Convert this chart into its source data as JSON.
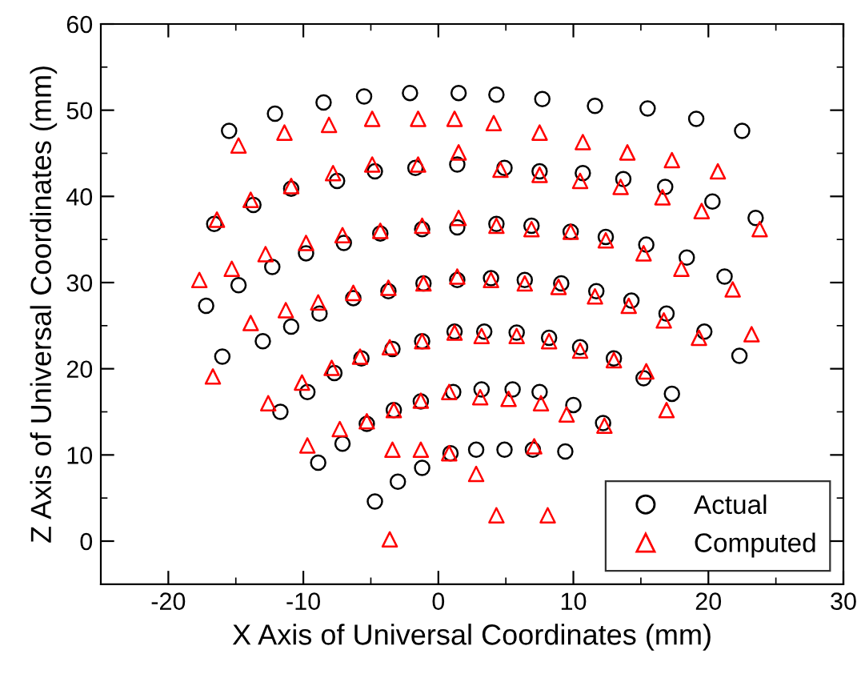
{
  "chart_data": {
    "type": "scatter",
    "xlabel": "X Axis of Universal Coordinates (mm)",
    "ylabel": "Z Axis of Universal Coordinates (mm)",
    "xlim": [
      -25,
      30
    ],
    "ylim": [
      -5,
      60
    ],
    "xticks": [
      {
        "value": -25,
        "label": null
      },
      -20,
      {
        "value": -15,
        "label": null
      },
      -10,
      {
        "value": -5,
        "label": null
      },
      0,
      {
        "value": 5,
        "label": null
      },
      10,
      {
        "value": 15,
        "label": null
      },
      20,
      {
        "value": 25,
        "label": null
      },
      30
    ],
    "yticks": [
      {
        "value": -5,
        "label": null
      },
      0,
      {
        "value": 5,
        "label": null
      },
      10,
      {
        "value": 15,
        "label": null
      },
      20,
      {
        "value": 25,
        "label": null
      },
      30,
      {
        "value": 35,
        "label": null
      },
      40,
      {
        "value": 45,
        "label": null
      },
      50,
      {
        "value": 55,
        "label": null
      },
      60
    ],
    "legend": "bottom right",
    "grid": false,
    "series": [
      {
        "name": "Actual",
        "color": "#000000",
        "marker": "circle",
        "x": [
          -15.5,
          -12.1,
          -8.5,
          -5.5,
          -2.1,
          1.5,
          4.3,
          7.7,
          11.6,
          15.5,
          19.1,
          22.5,
          -16.6,
          -13.7,
          -10.9,
          -7.5,
          -4.7,
          -1.7,
          1.4,
          4.9,
          7.5,
          10.7,
          13.7,
          16.8,
          20.3,
          23.5,
          -17.2,
          -14.8,
          -12.3,
          -9.8,
          -7.0,
          -4.3,
          -1.2,
          1.4,
          4.3,
          6.9,
          9.8,
          12.4,
          15.4,
          18.4,
          21.2,
          -16.0,
          -13.0,
          -10.9,
          -8.8,
          -6.3,
          -3.7,
          -1.1,
          1.4,
          3.9,
          6.4,
          9.1,
          11.7,
          14.3,
          16.9,
          19.7,
          22.3,
          -11.7,
          -9.7,
          -7.7,
          -5.7,
          -3.4,
          -1.2,
          1.2,
          3.4,
          5.8,
          8.2,
          10.5,
          13.0,
          15.2,
          17.3,
          -8.9,
          -7.1,
          -5.3,
          -3.3,
          -1.3,
          1.1,
          3.2,
          5.5,
          7.5,
          10.0,
          12.2,
          -4.7,
          -3.0,
          -1.2,
          0.9,
          2.8,
          4.9,
          7.0,
          9.4
        ],
        "values": [
          47.6,
          49.6,
          50.9,
          51.6,
          52.0,
          52.0,
          51.8,
          51.3,
          50.5,
          50.2,
          49.0,
          47.6,
          36.8,
          39.0,
          40.9,
          41.8,
          42.9,
          43.3,
          43.7,
          43.3,
          42.9,
          42.7,
          42.0,
          41.1,
          39.4,
          37.5,
          27.3,
          29.7,
          31.8,
          33.4,
          34.6,
          35.7,
          36.2,
          36.4,
          36.8,
          36.6,
          35.9,
          35.3,
          34.4,
          32.9,
          30.7,
          21.4,
          23.2,
          24.9,
          26.4,
          28.2,
          29.0,
          29.9,
          30.3,
          30.5,
          30.3,
          29.9,
          29.0,
          27.9,
          26.4,
          24.3,
          21.5,
          15.0,
          17.3,
          19.5,
          21.2,
          22.3,
          23.2,
          24.3,
          24.3,
          24.2,
          23.6,
          22.5,
          21.2,
          18.9,
          17.1,
          9.1,
          11.3,
          13.6,
          15.2,
          16.2,
          17.3,
          17.6,
          17.6,
          17.3,
          15.8,
          13.7,
          4.6,
          6.9,
          8.5,
          10.2,
          10.6,
          10.6,
          10.6,
          10.4
        ]
      },
      {
        "name": "Computed",
        "color": "#ff0000",
        "marker": "triangle",
        "x": [
          -14.8,
          -11.4,
          -8.1,
          -4.9,
          -1.5,
          1.2,
          4.1,
          7.5,
          10.7,
          14.0,
          17.3,
          20.7,
          -16.4,
          -13.9,
          -10.9,
          -7.8,
          -4.9,
          -1.5,
          1.5,
          4.6,
          7.5,
          10.5,
          13.5,
          16.6,
          19.5,
          23.8,
          -17.7,
          -15.3,
          -12.8,
          -9.8,
          -7.1,
          -4.3,
          -1.2,
          1.5,
          4.3,
          6.9,
          9.8,
          12.4,
          15.2,
          18.0,
          21.8,
          -16.7,
          -13.9,
          -11.3,
          -8.9,
          -6.3,
          -3.7,
          -1.1,
          1.4,
          3.9,
          6.4,
          8.9,
          11.6,
          14.1,
          16.7,
          19.3,
          23.2,
          -12.6,
          -10.1,
          -7.9,
          -5.8,
          -3.6,
          -1.2,
          1.2,
          3.2,
          5.8,
          8.2,
          10.5,
          13.0,
          15.4,
          -7.3,
          -5.3,
          -3.3,
          -1.3,
          0.8,
          3.1,
          5.2,
          7.6,
          9.5,
          12.3,
          16.9,
          -9.7,
          -3.4,
          -1.3,
          0.8,
          2.8,
          7.1,
          4.3,
          8.1,
          -3.6
        ],
        "values": [
          45.9,
          47.4,
          48.3,
          49.0,
          49.0,
          49.0,
          48.5,
          47.4,
          46.3,
          45.1,
          44.2,
          42.9,
          37.3,
          39.6,
          41.2,
          42.7,
          43.7,
          43.7,
          45.1,
          43.1,
          42.5,
          41.8,
          41.1,
          39.9,
          38.3,
          36.2,
          30.3,
          31.6,
          33.3,
          34.6,
          35.5,
          36.0,
          36.6,
          37.5,
          36.6,
          36.2,
          35.9,
          34.9,
          33.4,
          31.6,
          29.2,
          19.1,
          25.3,
          26.8,
          27.7,
          28.8,
          29.4,
          29.9,
          30.7,
          30.3,
          29.9,
          29.5,
          28.4,
          27.3,
          25.6,
          23.6,
          24.0,
          16.0,
          18.4,
          20.1,
          21.4,
          22.5,
          23.2,
          24.2,
          23.8,
          23.8,
          23.2,
          22.1,
          21.0,
          19.7,
          13.0,
          13.9,
          15.2,
          16.3,
          17.3,
          16.7,
          16.5,
          16.0,
          14.7,
          13.4,
          15.2,
          11.1,
          10.6,
          10.6,
          10.2,
          7.8,
          11.0,
          3.0,
          3.0,
          0.2
        ]
      }
    ]
  }
}
